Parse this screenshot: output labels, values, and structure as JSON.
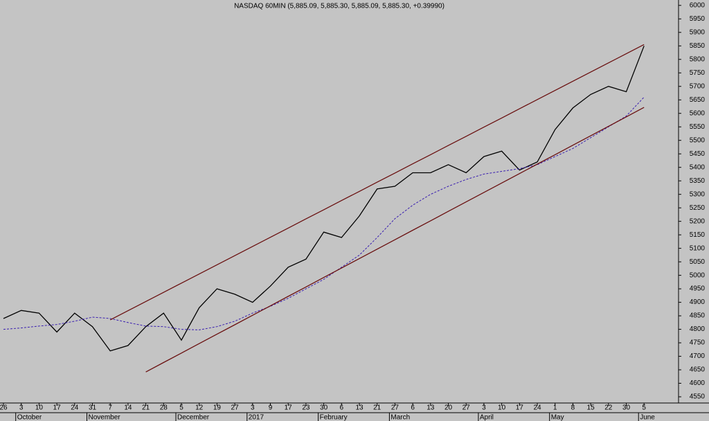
{
  "chart_data": {
    "type": "line",
    "title": "NASDAQ 60MIN (5,885.09, 5,885.30, 5,885.09, 5,885.30, +0.39990)",
    "categories": [
      "26",
      "3",
      "10",
      "17",
      "24",
      "31",
      "7",
      "14",
      "21",
      "28",
      "5",
      "12",
      "19",
      "27",
      "3",
      "9",
      "17",
      "23",
      "30",
      "6",
      "13",
      "21",
      "27",
      "6",
      "13",
      "20",
      "27",
      "3",
      "10",
      "17",
      "24",
      "1",
      "8",
      "15",
      "22",
      "30",
      "5"
    ],
    "month_labels": [
      null,
      "October",
      null,
      null,
      null,
      "November",
      null,
      null,
      null,
      null,
      "December",
      null,
      null,
      null,
      "2017",
      null,
      null,
      null,
      "February",
      null,
      null,
      null,
      "March",
      null,
      null,
      null,
      null,
      "April",
      null,
      null,
      null,
      "May",
      null,
      null,
      null,
      null,
      "June"
    ],
    "series": [
      {
        "color": "#000000",
        "style": "solid",
        "values": [
          4840,
          4870,
          4860,
          4790,
          4860,
          4810,
          4720,
          4740,
          4810,
          4860,
          4760,
          4880,
          4950,
          4930,
          4900,
          4960,
          5030,
          5060,
          5160,
          5140,
          5220,
          5320,
          5330,
          5380,
          5380,
          5410,
          5380,
          5440,
          5460,
          5390,
          5420,
          5540,
          5620,
          5670,
          5700,
          5680,
          5850
        ]
      },
      {
        "color": "#3a1fb0",
        "style": "dashed",
        "values": [
          4800,
          4805,
          4812,
          4818,
          4830,
          4845,
          4840,
          4825,
          4812,
          4810,
          4800,
          4798,
          4810,
          4830,
          4860,
          4885,
          4915,
          4950,
          4985,
          5030,
          5075,
          5140,
          5210,
          5260,
          5300,
          5330,
          5355,
          5375,
          5385,
          5395,
          5410,
          5440,
          5470,
          5510,
          5550,
          5590,
          5660
        ]
      },
      {
        "color": "#6a1010",
        "style": "solid",
        "values": [
          null,
          null,
          null,
          null,
          null,
          null,
          4835,
          4869,
          4903,
          4937,
          4971,
          5005,
          5039,
          5073,
          5107,
          5141,
          5175,
          5209,
          5243,
          5277,
          5311,
          5345,
          5379,
          5413,
          5447,
          5481,
          5515,
          5549,
          5583,
          5617,
          5651,
          5685,
          5719,
          5753,
          5787,
          5821,
          5855
        ]
      },
      {
        "color": "#6a1010",
        "style": "solid",
        "values": [
          null,
          null,
          null,
          null,
          null,
          null,
          null,
          null,
          4642,
          4677,
          4712,
          4747,
          4782,
          4817,
          4852,
          4887,
          4922,
          4957,
          4992,
          5027,
          5062,
          5097,
          5132,
          5167,
          5202,
          5237,
          5272,
          5307,
          5342,
          5377,
          5412,
          5447,
          5482,
          5517,
          5552,
          5587,
          5622
        ]
      }
    ],
    "ylim": [
      4527,
      6020
    ],
    "yticks": [
      4550,
      4600,
      4650,
      4700,
      4750,
      4800,
      4850,
      4900,
      4950,
      5000,
      5050,
      5100,
      5150,
      5200,
      5250,
      5300,
      5350,
      5400,
      5450,
      5500,
      5550,
      5600,
      5650,
      5700,
      5750,
      5800,
      5850,
      5900,
      5950,
      6000
    ],
    "background": "#c4c4c4"
  }
}
